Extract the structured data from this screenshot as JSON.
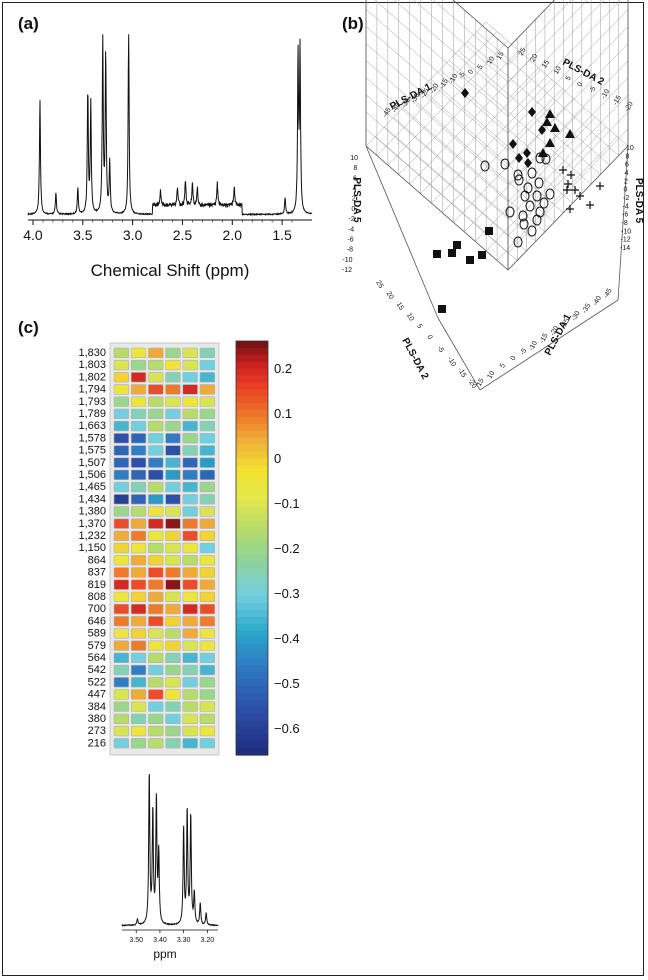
{
  "panels": {
    "a": {
      "label": "(a)"
    },
    "b": {
      "label": "(b)"
    },
    "c": {
      "label": "(c)"
    }
  },
  "chart_data": [
    {
      "id": "nmr-spectrum",
      "type": "line",
      "xlabel": "Chemical Shift (ppm)",
      "xlim": [
        4.05,
        1.2
      ],
      "x_reversed": true,
      "x_ticks": [
        "4.0",
        "3.5",
        "3.0",
        "2.5",
        "2.0",
        "1.5"
      ],
      "peaks": [
        {
          "x": 4.13,
          "y": 0.06
        },
        {
          "x": 3.93,
          "y": 0.62
        },
        {
          "x": 3.77,
          "y": 0.12
        },
        {
          "x": 3.55,
          "y": 0.14
        },
        {
          "x": 3.45,
          "y": 0.66
        },
        {
          "x": 3.42,
          "y": 0.6
        },
        {
          "x": 3.3,
          "y": 0.94
        },
        {
          "x": 3.27,
          "y": 0.86
        },
        {
          "x": 3.23,
          "y": 0.28
        },
        {
          "x": 3.04,
          "y": 0.97
        },
        {
          "x": 2.72,
          "y": 0.08
        },
        {
          "x": 2.55,
          "y": 0.1
        },
        {
          "x": 2.47,
          "y": 0.13
        },
        {
          "x": 2.4,
          "y": 0.12
        },
        {
          "x": 2.35,
          "y": 0.1
        },
        {
          "x": 2.15,
          "y": 0.12
        },
        {
          "x": 1.98,
          "y": 0.1
        },
        {
          "x": 1.47,
          "y": 0.09
        },
        {
          "x": 1.34,
          "y": 0.85
        },
        {
          "x": 1.32,
          "y": 0.88
        }
      ]
    },
    {
      "id": "plsda-3d",
      "type": "scatter",
      "axes": [
        "PLS-DA 1",
        "PLS-DA 2",
        "PLS-DA 5"
      ],
      "axis_labels_printed": [
        "PLS-DA 1",
        "PLS-DA 2",
        "PLS-DA 5",
        "PLS-DA 5",
        "PLS-DA 2",
        "PLS-DA 1"
      ],
      "tick_labels": {
        "back_left": [
          "-45",
          "-40",
          "-35",
          "-30",
          "-25",
          "-20",
          "-15",
          "-10",
          "-5",
          "0",
          "5",
          "10",
          "15"
        ],
        "back_right": [
          "25",
          "20",
          "15",
          "10",
          "5",
          "0",
          "-5",
          "-10",
          "-15",
          "-20"
        ],
        "left_vertical": [
          "10",
          "8",
          "6",
          "4",
          "2",
          "0",
          "-2",
          "-4",
          "-6",
          "-8",
          "-10",
          "-12"
        ],
        "right_vertical": [
          "10",
          "8",
          "6",
          "4",
          "2",
          "0",
          "-2",
          "-4",
          "-6",
          "-8",
          "-10",
          "-12",
          "-14"
        ],
        "front_left": [
          "25",
          "20",
          "15",
          "10",
          "5",
          "0",
          "-5",
          "-10",
          "-15",
          "-20"
        ],
        "front_right": [
          "15",
          "10",
          "5",
          "0",
          "-5",
          "-10",
          "-15",
          "-20",
          "-25",
          "-30",
          "-35",
          "-40",
          "-45"
        ]
      },
      "series": [
        {
          "marker": "diamond",
          "points": [
            [
              465,
              93
            ],
            [
              513,
              144
            ],
            [
              542,
              130
            ],
            [
              532,
              112
            ],
            [
              527,
              153
            ],
            [
              519,
              158
            ],
            [
              528,
              163
            ]
          ]
        },
        {
          "marker": "triangle",
          "points": [
            [
              550,
              114
            ],
            [
              547,
              122
            ],
            [
              555,
              128
            ],
            [
              570,
              134
            ],
            [
              550,
              143
            ],
            [
              543,
              153
            ]
          ]
        },
        {
          "marker": "circle",
          "points": [
            [
              485,
              166
            ],
            [
              505,
              164
            ],
            [
              518,
              175
            ],
            [
              532,
              173
            ],
            [
              540,
              158
            ],
            [
              546,
              159
            ],
            [
              539,
              183
            ],
            [
              528,
              188
            ],
            [
              519,
              180
            ],
            [
              537,
              196
            ],
            [
              510,
              212
            ],
            [
              540,
              212
            ],
            [
              550,
              194
            ],
            [
              544,
              203
            ],
            [
              525,
              196
            ],
            [
              524,
              224
            ],
            [
              532,
              231
            ],
            [
              537,
              220
            ],
            [
              523,
              216
            ],
            [
              530,
              206
            ],
            [
              518,
              242
            ]
          ]
        },
        {
          "marker": "cross",
          "points": [
            [
              563,
              170
            ],
            [
              571,
              175
            ],
            [
              567,
              190
            ],
            [
              575,
              190
            ],
            [
              580,
              196
            ],
            [
              600,
              186
            ],
            [
              590,
              205
            ],
            [
              570,
              209
            ],
            [
              568,
              184
            ]
          ]
        },
        {
          "marker": "square",
          "points": [
            [
              489,
              231
            ],
            [
              457,
              245
            ],
            [
              437,
              254
            ],
            [
              452,
              253
            ],
            [
              482,
              255
            ],
            [
              470,
              260
            ],
            [
              442,
              309
            ]
          ]
        }
      ]
    },
    {
      "id": "loadings-heatmap",
      "type": "heatmap",
      "row_labels": [
        "1,830",
        "1,803",
        "1,802",
        "1,794",
        "1,793",
        "1,789",
        "1,663",
        "1,578",
        "1,575",
        "1,507",
        "1,506",
        "1,465",
        "1,434",
        "1,380",
        "1,370",
        "1,232",
        "1,150",
        "864",
        "837",
        "819",
        "808",
        "700",
        "646",
        "589",
        "579",
        "564",
        "542",
        "522",
        "447",
        "384",
        "380",
        "273",
        "216"
      ],
      "values": [
        [
          -0.15,
          -0.05,
          0.05,
          -0.2,
          -0.1,
          -0.25
        ],
        [
          -0.1,
          -0.2,
          -0.15,
          -0.05,
          -0.1,
          -0.3
        ],
        [
          0.0,
          0.2,
          -0.1,
          -0.25,
          -0.3,
          -0.35
        ],
        [
          -0.05,
          0.05,
          0.15,
          0.1,
          0.2,
          0.05
        ],
        [
          -0.2,
          -0.05,
          -0.15,
          -0.1,
          -0.05,
          -0.1
        ],
        [
          -0.3,
          -0.25,
          -0.2,
          -0.3,
          -0.15,
          -0.2
        ],
        [
          -0.35,
          -0.3,
          -0.15,
          -0.2,
          -0.35,
          -0.25
        ],
        [
          -0.55,
          -0.5,
          -0.3,
          -0.45,
          -0.2,
          -0.3
        ],
        [
          -0.5,
          -0.45,
          -0.3,
          -0.55,
          -0.25,
          -0.35
        ],
        [
          -0.5,
          -0.55,
          -0.45,
          -0.35,
          -0.5,
          -0.4
        ],
        [
          -0.45,
          -0.5,
          -0.55,
          -0.4,
          -0.45,
          -0.5
        ],
        [
          -0.3,
          -0.25,
          -0.15,
          -0.3,
          -0.35,
          -0.2
        ],
        [
          -0.6,
          -0.5,
          -0.4,
          -0.55,
          -0.3,
          -0.25
        ],
        [
          -0.2,
          -0.15,
          -0.05,
          -0.1,
          -0.3,
          -0.1
        ],
        [
          0.15,
          0.05,
          0.2,
          0.25,
          0.1,
          0.05
        ],
        [
          0.05,
          0.1,
          -0.05,
          0.0,
          0.15,
          0.0
        ],
        [
          0.0,
          -0.05,
          -0.15,
          -0.1,
          -0.05,
          -0.3
        ],
        [
          -0.05,
          0.05,
          0.0,
          -0.1,
          -0.15,
          -0.05
        ],
        [
          0.1,
          0.05,
          0.15,
          0.1,
          0.05,
          0.0
        ],
        [
          0.2,
          0.15,
          0.1,
          0.25,
          0.15,
          0.05
        ],
        [
          -0.05,
          0.0,
          0.05,
          -0.1,
          -0.05,
          0.0
        ],
        [
          0.15,
          0.2,
          0.1,
          0.05,
          0.2,
          0.15
        ],
        [
          0.1,
          0.05,
          0.15,
          0.0,
          0.05,
          0.1
        ],
        [
          -0.05,
          0.0,
          -0.1,
          -0.15,
          0.05,
          -0.05
        ],
        [
          0.05,
          0.1,
          -0.05,
          0.0,
          -0.1,
          -0.05
        ],
        [
          -0.35,
          -0.3,
          -0.15,
          -0.25,
          -0.35,
          -0.3
        ],
        [
          -0.25,
          -0.45,
          -0.3,
          -0.2,
          -0.25,
          -0.35
        ],
        [
          -0.45,
          -0.35,
          -0.15,
          -0.1,
          -0.3,
          -0.2
        ],
        [
          -0.1,
          0.05,
          0.15,
          -0.05,
          -0.15,
          -0.2
        ],
        [
          -0.2,
          -0.1,
          -0.3,
          -0.25,
          -0.15,
          -0.1
        ],
        [
          -0.15,
          -0.25,
          -0.2,
          -0.3,
          -0.1,
          -0.15
        ],
        [
          -0.1,
          -0.05,
          -0.15,
          -0.2,
          -0.1,
          -0.05
        ],
        [
          -0.3,
          -0.2,
          -0.15,
          -0.25,
          -0.35,
          -0.3
        ]
      ],
      "colorbar": {
        "vmin": -0.66,
        "vmax": 0.26,
        "tick_labels": [
          "0.2",
          "0.1",
          "0",
          "−0.1",
          "−0.2",
          "−0.3",
          "−0.4",
          "−0.5",
          "−0.6"
        ],
        "tick_values": [
          0.2,
          0.1,
          0.0,
          -0.1,
          -0.2,
          -0.3,
          -0.4,
          -0.5,
          -0.6
        ]
      }
    },
    {
      "id": "nmr-inset",
      "type": "line",
      "xlabel": "ppm",
      "xlim": [
        3.56,
        3.155
      ],
      "x_reversed": true,
      "x_ticks": [
        "3.50",
        "3.40",
        "3.30",
        "3.20"
      ],
      "peaks": [
        {
          "x": 3.445,
          "y": 0.97
        },
        {
          "x": 3.43,
          "y": 0.72
        },
        {
          "x": 3.415,
          "y": 0.8
        },
        {
          "x": 3.405,
          "y": 0.45
        },
        {
          "x": 3.495,
          "y": 0.04
        },
        {
          "x": 3.3,
          "y": 0.62
        },
        {
          "x": 3.285,
          "y": 0.73
        },
        {
          "x": 3.27,
          "y": 0.7
        },
        {
          "x": 3.255,
          "y": 0.2
        },
        {
          "x": 3.23,
          "y": 0.14
        },
        {
          "x": 3.205,
          "y": 0.08
        }
      ]
    }
  ]
}
